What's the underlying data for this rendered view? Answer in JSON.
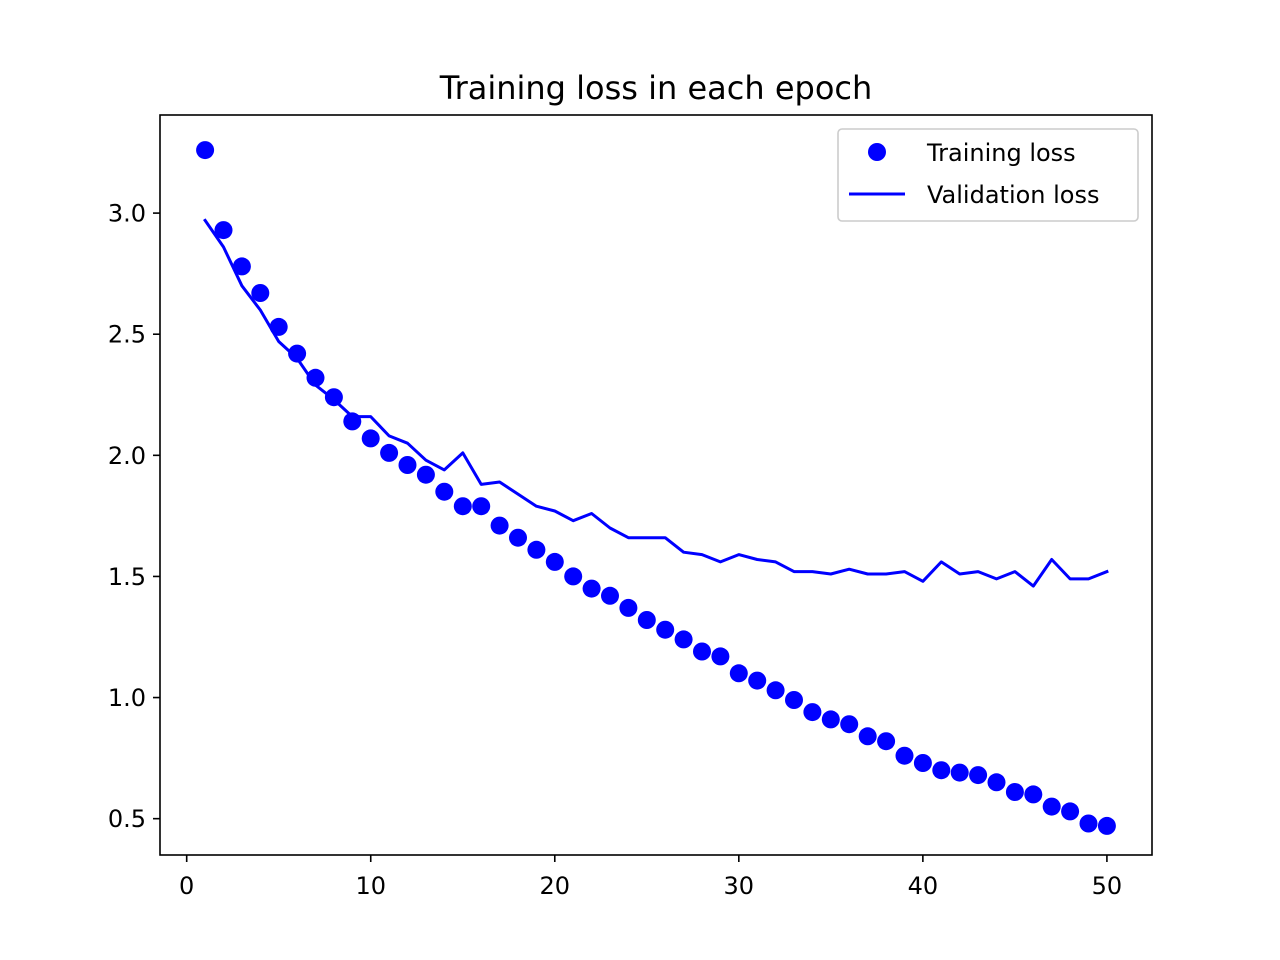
{
  "chart_data": {
    "type": "line",
    "title": "Training loss in each epoch",
    "xlabel": "",
    "ylabel": "",
    "xlim": [
      -1.45,
      52.45
    ],
    "ylim": [
      0.35,
      3.405
    ],
    "xticks": [
      0,
      10,
      20,
      30,
      40,
      50
    ],
    "xtick_labels": [
      "0",
      "10",
      "20",
      "30",
      "40",
      "50"
    ],
    "yticks": [
      0.5,
      1.0,
      1.5,
      2.0,
      2.5,
      3.0
    ],
    "ytick_labels": [
      "0.5",
      "1.0",
      "1.5",
      "2.0",
      "2.5",
      "3.0"
    ],
    "grid": false,
    "legend_position": "upper right",
    "x": [
      1,
      2,
      3,
      4,
      5,
      6,
      7,
      8,
      9,
      10,
      11,
      12,
      13,
      14,
      15,
      16,
      17,
      18,
      19,
      20,
      21,
      22,
      23,
      24,
      25,
      26,
      27,
      28,
      29,
      30,
      31,
      32,
      33,
      34,
      35,
      36,
      37,
      38,
      39,
      40,
      41,
      42,
      43,
      44,
      45,
      46,
      47,
      48,
      49,
      50
    ],
    "series": [
      {
        "name": "Training loss",
        "style": "markers",
        "color": "#0000ff",
        "values": [
          3.26,
          2.93,
          2.78,
          2.67,
          2.53,
          2.42,
          2.32,
          2.24,
          2.14,
          2.07,
          2.01,
          1.96,
          1.92,
          1.85,
          1.79,
          1.79,
          1.71,
          1.66,
          1.61,
          1.56,
          1.5,
          1.45,
          1.42,
          1.37,
          1.32,
          1.28,
          1.24,
          1.19,
          1.17,
          1.1,
          1.07,
          1.03,
          0.99,
          0.94,
          0.91,
          0.89,
          0.84,
          0.82,
          0.76,
          0.73,
          0.7,
          0.69,
          0.68,
          0.65,
          0.61,
          0.6,
          0.55,
          0.53,
          0.48,
          0.47
        ]
      },
      {
        "name": "Validation loss",
        "style": "line",
        "color": "#0000ff",
        "values": [
          2.97,
          2.86,
          2.7,
          2.6,
          2.47,
          2.4,
          2.29,
          2.23,
          2.16,
          2.16,
          2.08,
          2.05,
          1.98,
          1.94,
          2.01,
          1.88,
          1.89,
          1.84,
          1.79,
          1.77,
          1.73,
          1.76,
          1.7,
          1.66,
          1.66,
          1.66,
          1.6,
          1.59,
          1.56,
          1.59,
          1.57,
          1.56,
          1.52,
          1.52,
          1.51,
          1.53,
          1.51,
          1.51,
          1.52,
          1.48,
          1.56,
          1.51,
          1.52,
          1.49,
          1.52,
          1.46,
          1.57,
          1.49,
          1.49,
          1.52
        ]
      }
    ]
  }
}
